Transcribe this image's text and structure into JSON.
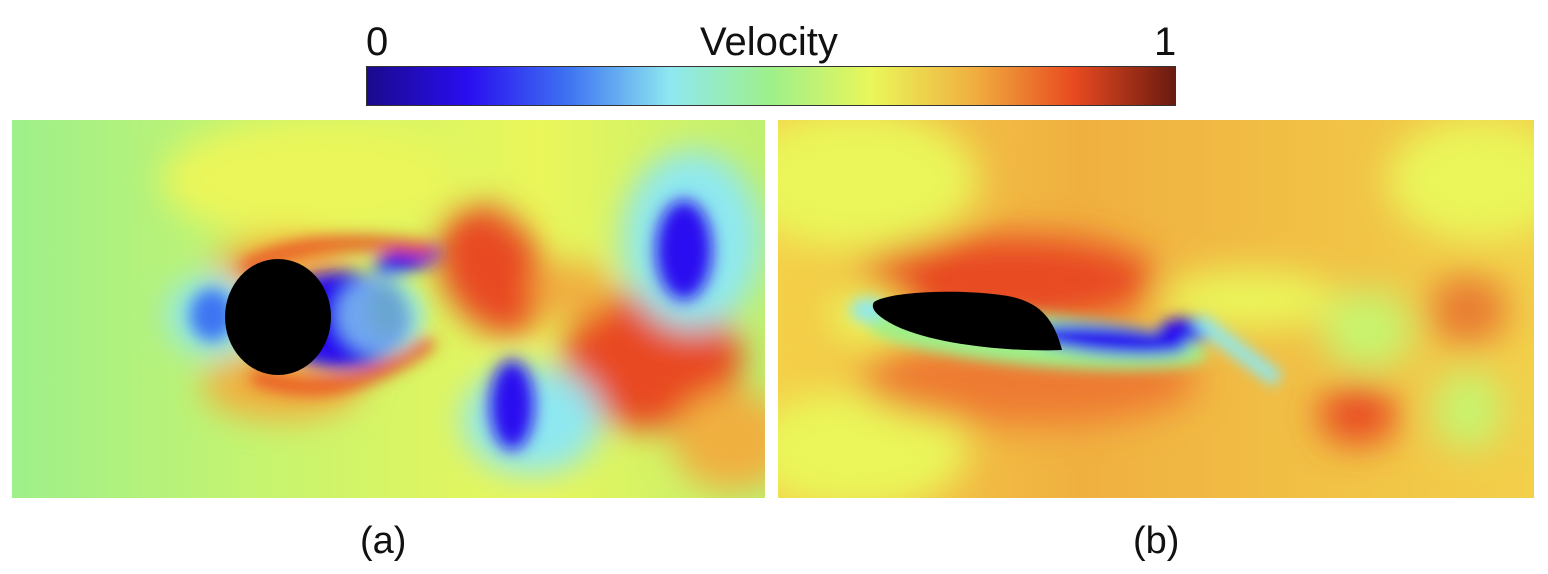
{
  "colorbar": {
    "title": "Velocity",
    "min_label": "0",
    "max_label": "1",
    "stops": [
      "#1a0a8c",
      "#2a0df0",
      "#3e74f2",
      "#8ee8f0",
      "#9ef08a",
      "#eaf65a",
      "#f0b040",
      "#e84a20",
      "#6a1a10"
    ]
  },
  "panels": [
    {
      "caption": "(a)",
      "obstacle": "cylinder"
    },
    {
      "caption": "(b)",
      "obstacle": "airfoil"
    }
  ]
}
